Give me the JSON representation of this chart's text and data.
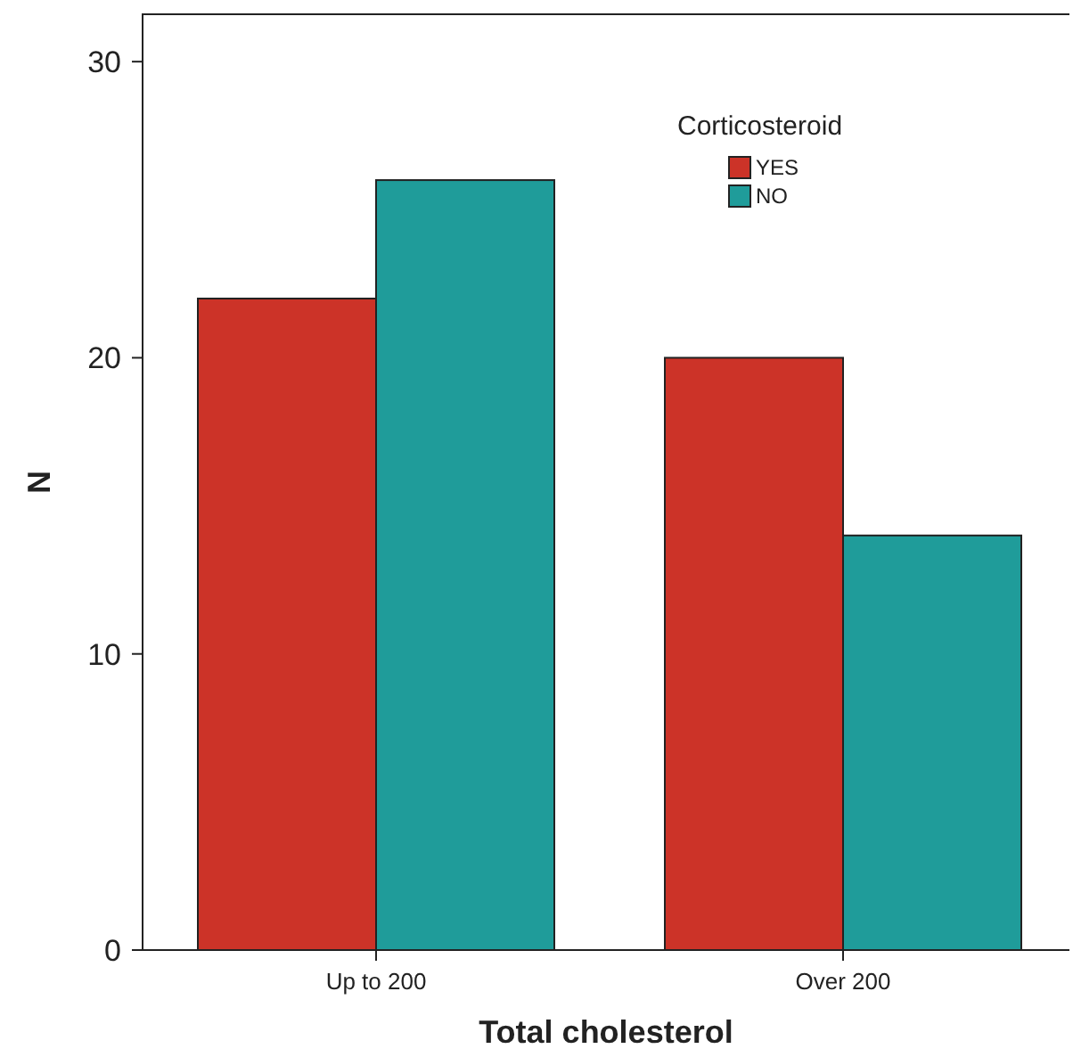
{
  "chart_data": {
    "type": "bar",
    "xlabel": "Total cholesterol",
    "ylabel": "N",
    "legend_title": "Corticosteroid",
    "categories": [
      "Up to 200",
      "Over 200"
    ],
    "series": [
      {
        "name": "YES",
        "color": "#cc3328",
        "values": [
          22,
          20
        ]
      },
      {
        "name": "NO",
        "color": "#1f9c9a",
        "values": [
          26,
          14
        ]
      }
    ],
    "ylim": [
      0,
      31.6
    ],
    "yticks": [
      0,
      10,
      20,
      30
    ],
    "grid": false,
    "legend": "top right"
  }
}
